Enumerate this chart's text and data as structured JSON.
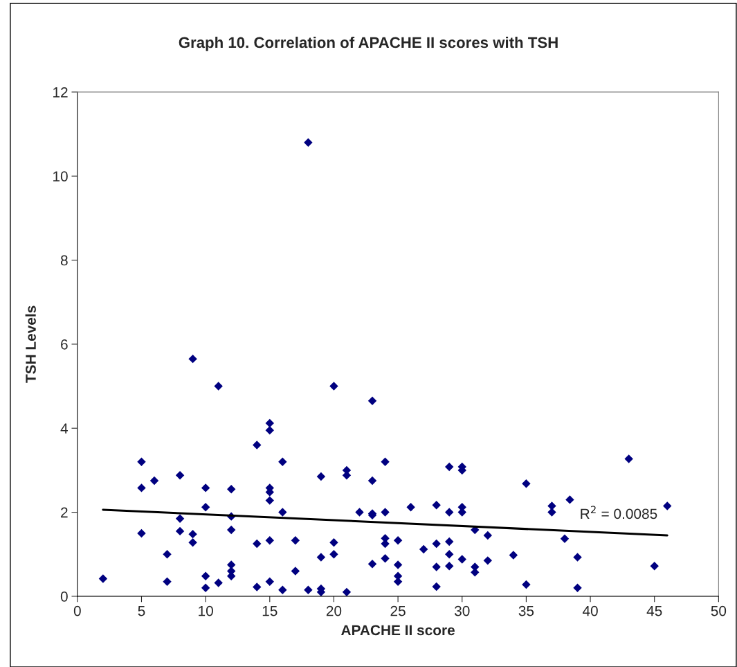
{
  "chart_data": {
    "type": "scatter",
    "title": "Graph 10. Correlation of APACHE II scores with TSH",
    "xlabel": "APACHE II score",
    "ylabel": "TSH Levels",
    "xlim": [
      0,
      50
    ],
    "xticks": [
      0,
      5,
      10,
      15,
      20,
      25,
      30,
      35,
      40,
      45,
      50
    ],
    "ylim": [
      0,
      12
    ],
    "yticks": [
      0,
      2,
      4,
      6,
      8,
      10,
      12
    ],
    "grid": false,
    "marker": "diamond",
    "series": [
      {
        "color": "#000080",
        "x": [
          2,
          5,
          5,
          5,
          6,
          7,
          7,
          8,
          8,
          8,
          9,
          9,
          9,
          10,
          10,
          10,
          10,
          11,
          11,
          12,
          12,
          12,
          12,
          12,
          12,
          14,
          14,
          14,
          15,
          15,
          15,
          15,
          15,
          15,
          15,
          16,
          16,
          16,
          17,
          17,
          18,
          18,
          19,
          19,
          19,
          19,
          20,
          20,
          20,
          21,
          21,
          21,
          22,
          23,
          23,
          23,
          23,
          23,
          24,
          24,
          24,
          24,
          24,
          25,
          25,
          25,
          25,
          26,
          27,
          28,
          28,
          28,
          28,
          29,
          29,
          29,
          29,
          29,
          30,
          30,
          30,
          30,
          30,
          31,
          31,
          31,
          32,
          32,
          34,
          35,
          35,
          37,
          37,
          38,
          38.4,
          39,
          39,
          43,
          45,
          46
        ],
        "values": [
          0.42,
          3.2,
          2.58,
          1.5,
          2.75,
          1.0,
          0.35,
          2.88,
          1.85,
          1.55,
          5.65,
          1.48,
          1.28,
          2.58,
          2.12,
          0.48,
          0.2,
          5.0,
          0.32,
          2.55,
          1.9,
          1.58,
          0.75,
          0.6,
          0.48,
          3.6,
          1.25,
          0.22,
          4.12,
          3.95,
          2.58,
          2.48,
          2.28,
          1.33,
          0.35,
          3.2,
          2.0,
          0.15,
          1.33,
          0.6,
          10.8,
          0.15,
          2.85,
          0.93,
          0.18,
          0.1,
          5.0,
          1.28,
          1.0,
          3.0,
          2.88,
          0.1,
          2.0,
          4.65,
          2.75,
          1.97,
          1.93,
          0.77,
          3.2,
          2.0,
          1.38,
          1.25,
          0.9,
          1.33,
          0.75,
          0.48,
          0.35,
          2.12,
          1.12,
          2.17,
          1.25,
          0.7,
          0.23,
          3.08,
          2.0,
          1.3,
          1.0,
          0.72,
          3.08,
          3.0,
          2.12,
          2.0,
          0.88,
          1.58,
          0.7,
          0.57,
          1.45,
          0.85,
          0.98,
          2.68,
          0.28,
          2.15,
          2.0,
          1.37,
          2.3,
          0.93,
          0.2,
          3.27,
          0.72,
          2.15
        ]
      },
      {
        "type": "line",
        "color": "#000000",
        "marker": "none",
        "line_style": "solid",
        "x": [
          2,
          46
        ],
        "values": [
          2.06,
          1.45
        ]
      }
    ],
    "annotations": [
      {
        "text": "R$^{2}$ = 0.0085",
        "x": 46,
        "y": 1.45
      }
    ]
  }
}
